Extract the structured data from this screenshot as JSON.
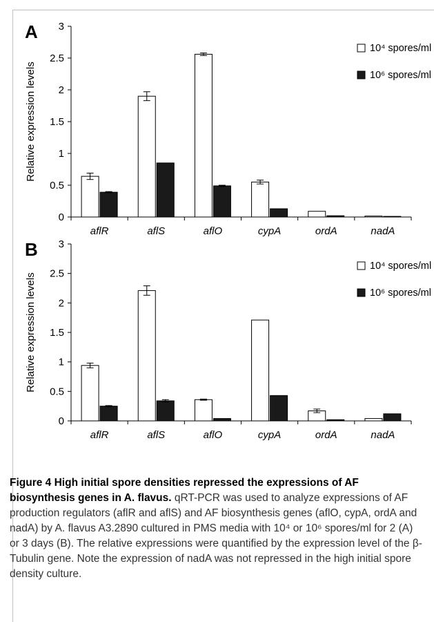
{
  "chart_data": [
    {
      "panel": "A",
      "type": "bar",
      "ylabel": "Relative expression levels",
      "ylim": [
        0,
        3
      ],
      "yticks": [
        "0",
        "0.5",
        "1",
        "1.5",
        "2",
        "2.5",
        "3"
      ],
      "categories": [
        "aflR",
        "aflS",
        "aflO",
        "cypA",
        "ordA",
        "nadA"
      ],
      "legend_position": "top-right",
      "series": [
        {
          "name": "10⁴ spores/ml",
          "color": "#ffffff",
          "values": [
            0.64,
            1.9,
            2.56,
            0.55,
            0.09,
            0.015
          ],
          "errors": [
            0.05,
            0.07,
            0.02,
            0.03,
            0.0,
            0.0
          ]
        },
        {
          "name": "10⁶ spores/ml",
          "color": "#1a1a1a",
          "values": [
            0.39,
            0.85,
            0.49,
            0.13,
            0.02,
            0.01
          ],
          "errors": [
            0.01,
            0.0,
            0.01,
            0.0,
            0.0,
            0.0
          ]
        }
      ]
    },
    {
      "panel": "B",
      "type": "bar",
      "ylabel": "Relative expression levels",
      "ylim": [
        0,
        3
      ],
      "yticks": [
        "0",
        "0.5",
        "1",
        "1.5",
        "2",
        "2.5",
        "3"
      ],
      "categories": [
        "aflR",
        "aflS",
        "aflO",
        "cypA",
        "ordA",
        "nadA"
      ],
      "legend_position": "top-right",
      "series": [
        {
          "name": "10⁴ spores/ml",
          "color": "#ffffff",
          "values": [
            0.94,
            2.21,
            0.36,
            1.71,
            0.17,
            0.04
          ],
          "errors": [
            0.04,
            0.08,
            0.01,
            0.0,
            0.03,
            0.0
          ]
        },
        {
          "name": "10⁶ spores/ml",
          "color": "#1a1a1a",
          "values": [
            0.25,
            0.34,
            0.04,
            0.43,
            0.02,
            0.12
          ],
          "errors": [
            0.01,
            0.02,
            0.0,
            0.0,
            0.0,
            0.0
          ]
        }
      ]
    }
  ],
  "caption": {
    "title": "Figure 4 High initial spore densities repressed the expressions of AF biosynthesis genes in A. flavus.",
    "text": "qRT-PCR was used to analyze expressions of AF production regulators (aflR and aflS) and AF biosynthesis genes (aflO, cypA, ordA and nadA) by A. flavus A3.2890 cultured in PMS media with 10⁴ or 10⁶ spores/ml for 2 (A) or 3 days (B). The relative expressions were quantified by the expression level of the β-Tubulin gene. Note the expression of nadA was not repressed in the high initial spore density culture."
  }
}
